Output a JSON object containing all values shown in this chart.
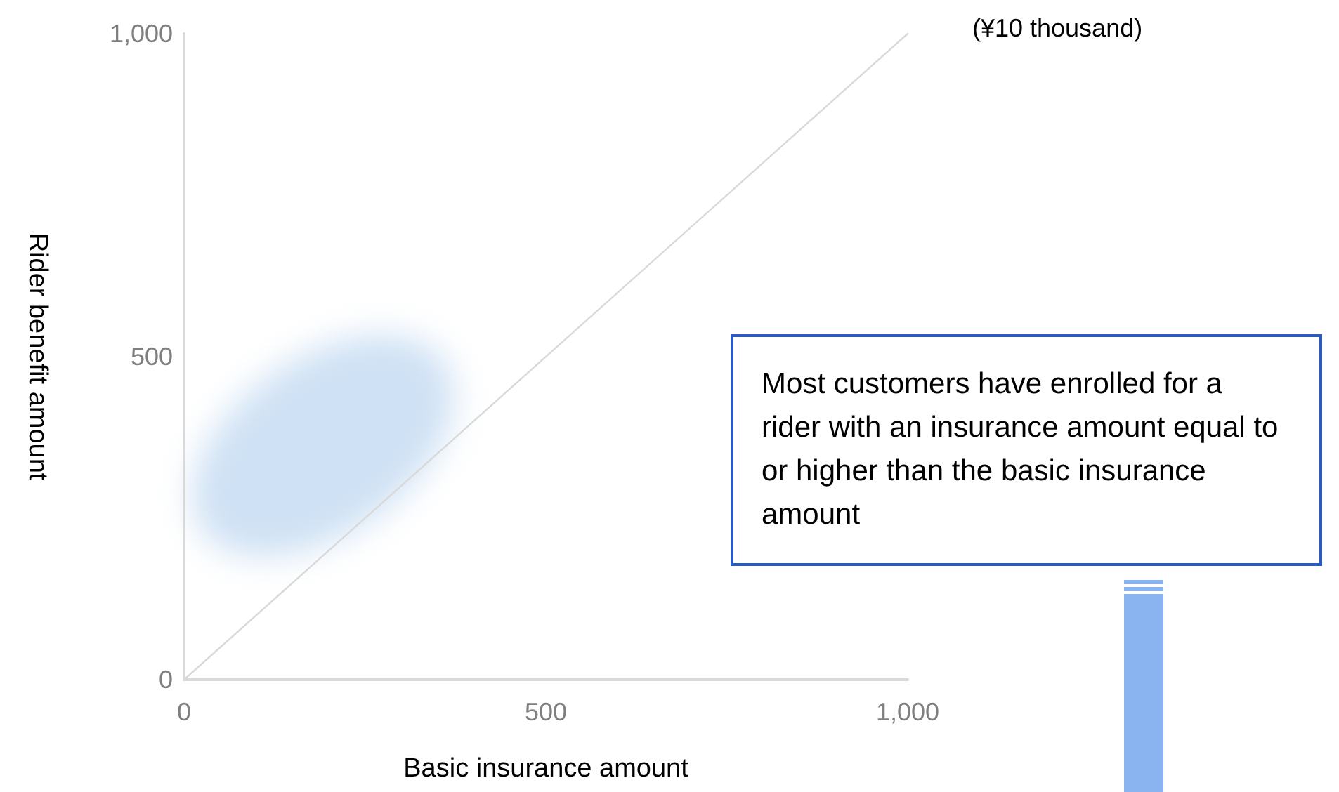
{
  "chart_data": {
    "type": "line",
    "xlabel": "Basic insurance amount",
    "ylabel": "Rider benefit amount",
    "annotations": [
      "(¥10 thousand)",
      "Most customers have enrolled for a rider with an insurance amount equal to or higher than the basic insurance amount"
    ],
    "series": [
      {
        "color": "#d9d9d9",
        "x": [
          0,
          1000
        ],
        "values": [
          0,
          1000
        ]
      }
    ],
    "xlim": [
      0,
      1000
    ],
    "xticks": [
      0,
      500,
      {
        "value": 1000,
        "label": "1,000"
      }
    ],
    "ylim": [
      0,
      1000
    ],
    "yticks": [
      0,
      500,
      {
        "value": 1000,
        "label": "1,000"
      }
    ],
    "marker": "none",
    "line_style": "solid"
  }
}
